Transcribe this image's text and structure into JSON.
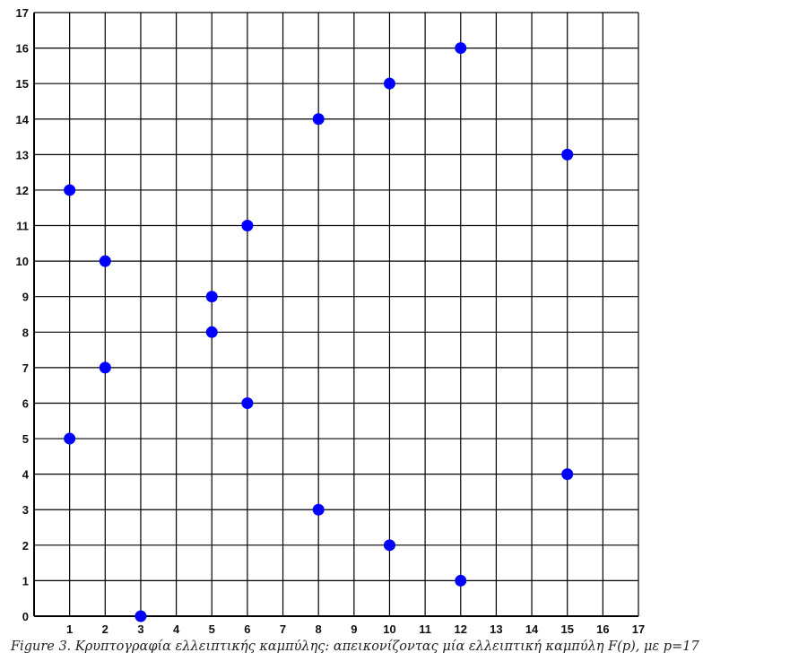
{
  "chart_data": {
    "type": "scatter",
    "title": "",
    "xlabel": "",
    "ylabel": "",
    "xlim": [
      0,
      17
    ],
    "ylim": [
      0,
      17
    ],
    "x_ticks": [
      1,
      2,
      3,
      4,
      5,
      6,
      7,
      8,
      9,
      10,
      11,
      12,
      13,
      14,
      15,
      16,
      17
    ],
    "y_ticks": [
      0,
      1,
      2,
      3,
      4,
      5,
      6,
      7,
      8,
      9,
      10,
      11,
      12,
      13,
      14,
      15,
      16,
      17
    ],
    "grid": true,
    "point_color": "#0000ff",
    "points": [
      {
        "x": 1,
        "y": 12
      },
      {
        "x": 1,
        "y": 5
      },
      {
        "x": 2,
        "y": 10
      },
      {
        "x": 2,
        "y": 7
      },
      {
        "x": 3,
        "y": 0
      },
      {
        "x": 5,
        "y": 9
      },
      {
        "x": 5,
        "y": 8
      },
      {
        "x": 6,
        "y": 11
      },
      {
        "x": 6,
        "y": 6
      },
      {
        "x": 8,
        "y": 14
      },
      {
        "x": 8,
        "y": 3
      },
      {
        "x": 10,
        "y": 15
      },
      {
        "x": 10,
        "y": 2
      },
      {
        "x": 12,
        "y": 16
      },
      {
        "x": 12,
        "y": 1
      },
      {
        "x": 15,
        "y": 13
      },
      {
        "x": 15,
        "y": 4
      }
    ]
  },
  "caption": "Figure 3. Κρυπτογραφία ελλειπτικής καμπύλης: απεικονίζοντας μία ελλειπτική καμπύλη F(p), με p=17"
}
